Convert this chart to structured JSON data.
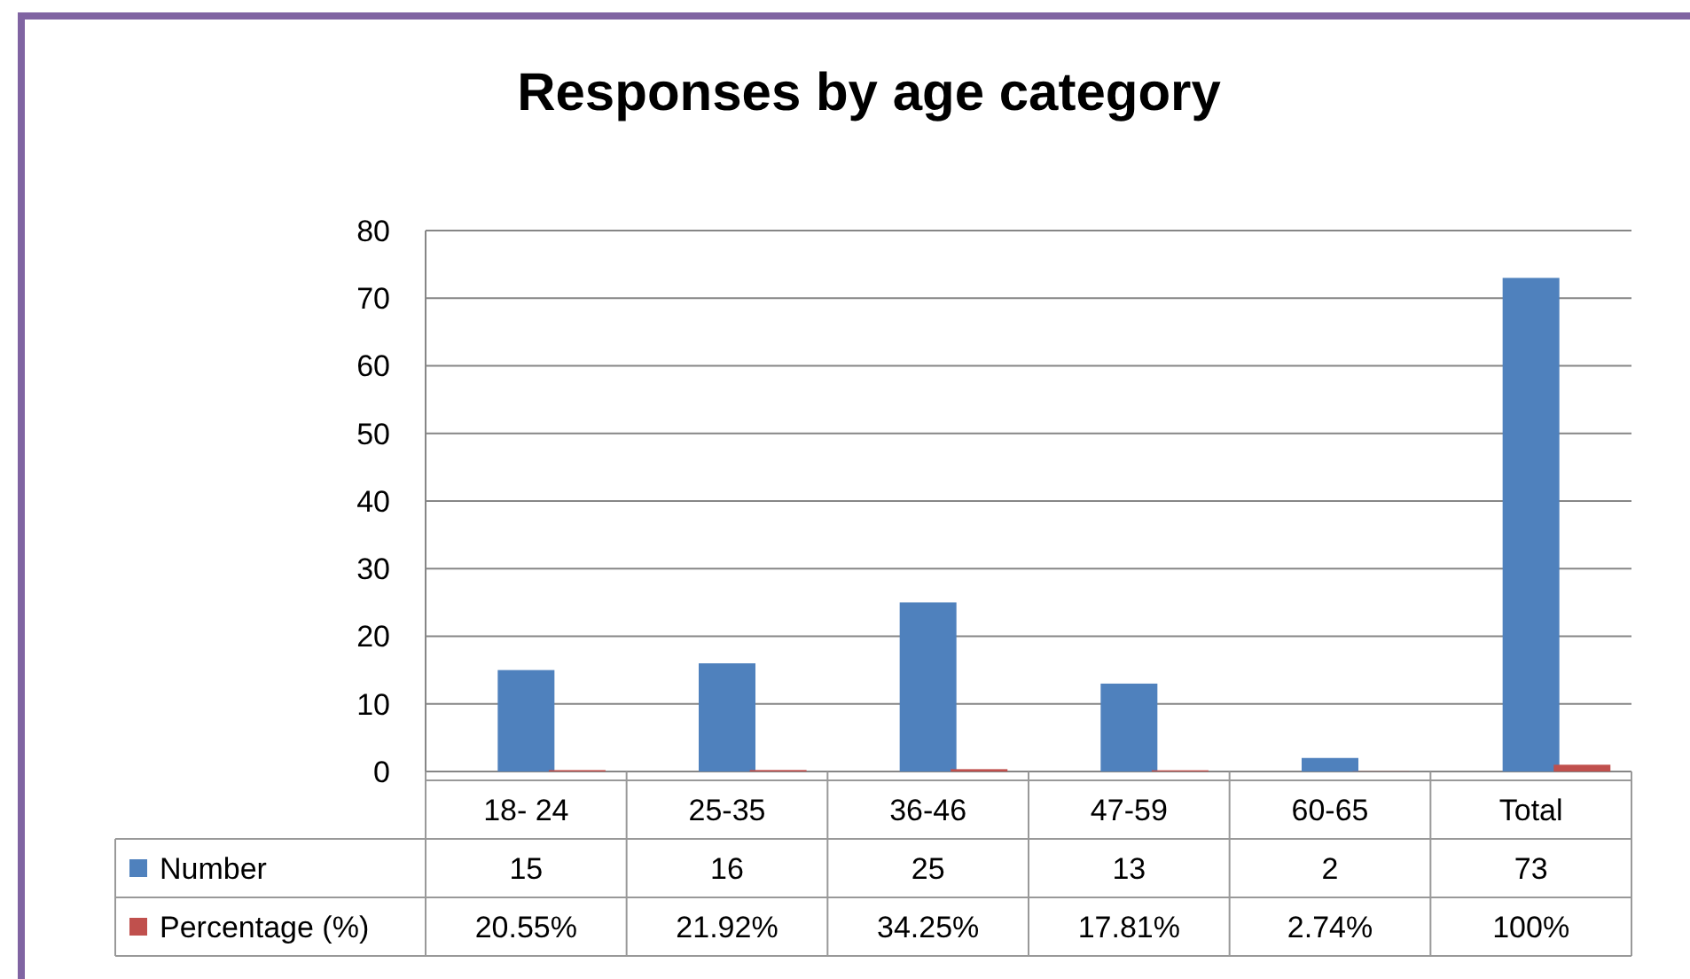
{
  "chart_data": {
    "type": "bar",
    "title": "Responses by age category",
    "categories": [
      "18- 24",
      "25-35",
      "36-46",
      "47-59",
      "60-65",
      "Total"
    ],
    "series": [
      {
        "name": "Number",
        "color": "#4f81bd",
        "values": [
          15,
          16,
          25,
          13,
          2,
          73
        ],
        "value_labels": [
          "15",
          "16",
          "25",
          "13",
          "2",
          "73"
        ]
      },
      {
        "name": "Percentage (%)",
        "color": "#c0504d",
        "values": [
          0.2055,
          0.2192,
          0.3425,
          0.1781,
          0.0274,
          1
        ],
        "value_labels": [
          "20.55%",
          "21.92%",
          "34.25%",
          "17.81%",
          "2.74%",
          "100%"
        ]
      }
    ],
    "ylim": [
      0,
      80
    ],
    "yticks": [
      0,
      10,
      20,
      30,
      40,
      50,
      60,
      70,
      80
    ],
    "grid": "y",
    "legend": "bottom left"
  }
}
